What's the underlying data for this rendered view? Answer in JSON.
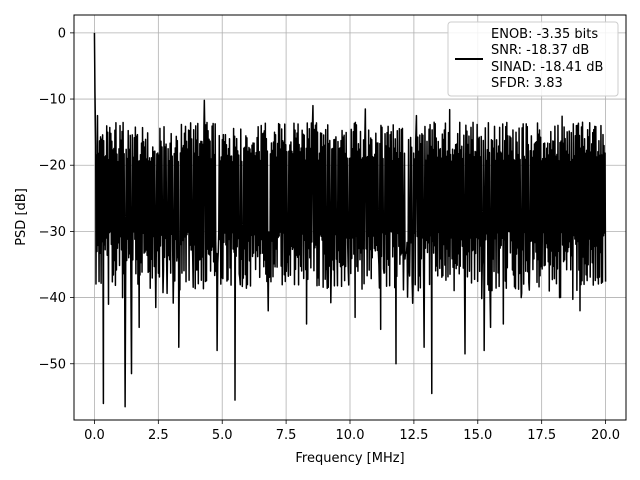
{
  "chart_data": {
    "type": "line",
    "title": "",
    "xlabel": "Frequency [MHz]",
    "ylabel": "PSD [dB]",
    "xlim": [
      -0.8,
      20.8
    ],
    "ylim": [
      -58.5,
      2.7
    ],
    "x_ticks": [
      0.0,
      2.5,
      5.0,
      7.5,
      10.0,
      12.5,
      15.0,
      17.5,
      20.0
    ],
    "x_tick_labels": [
      "0.0",
      "2.5",
      "5.0",
      "7.5",
      "10.0",
      "12.5",
      "15.0",
      "17.5",
      "20.0"
    ],
    "y_ticks": [
      0,
      -10,
      -20,
      -30,
      -40,
      -50
    ],
    "y_tick_labels": [
      "0",
      "−10",
      "−20",
      "−30",
      "−40",
      "−50"
    ],
    "grid": true,
    "legend_position": "top-right",
    "legend_lines": [
      "ENOB: -3.35 bits",
      "SNR: -18.37 dB",
      "SINAD: -18.41 dB",
      "SFDR: 3.83"
    ],
    "series": [
      {
        "color": "#000000",
        "x_range": [
          0,
          20
        ],
        "num_points": 1000,
        "typical_range_db": [
          -16,
          -33
        ],
        "peaks": [
          {
            "x": 0.0,
            "y": 0.0
          },
          {
            "x": 0.05,
            "y": -8.0
          },
          {
            "x": 0.12,
            "y": -12.5
          },
          {
            "x": 4.3,
            "y": -10.2
          },
          {
            "x": 8.55,
            "y": -11.0
          },
          {
            "x": 10.6,
            "y": -11.5
          },
          {
            "x": 13.9,
            "y": -11.6
          },
          {
            "x": 12.6,
            "y": -12.5
          },
          {
            "x": 18.3,
            "y": -12.6
          }
        ],
        "dips": [
          {
            "x": 0.35,
            "y": -56.0
          },
          {
            "x": 1.2,
            "y": -56.5
          },
          {
            "x": 1.45,
            "y": -51.5
          },
          {
            "x": 0.55,
            "y": -41.0
          },
          {
            "x": 1.1,
            "y": -40.0
          },
          {
            "x": 1.75,
            "y": -44.5
          },
          {
            "x": 2.4,
            "y": -41.5
          },
          {
            "x": 3.3,
            "y": -47.5
          },
          {
            "x": 4.8,
            "y": -48.0
          },
          {
            "x": 5.5,
            "y": -55.5
          },
          {
            "x": 6.8,
            "y": -42.0
          },
          {
            "x": 8.3,
            "y": -44.0
          },
          {
            "x": 10.2,
            "y": -43.0
          },
          {
            "x": 11.2,
            "y": -44.8
          },
          {
            "x": 11.8,
            "y": -50.0
          },
          {
            "x": 12.9,
            "y": -47.5
          },
          {
            "x": 13.2,
            "y": -54.5
          },
          {
            "x": 14.5,
            "y": -48.5
          },
          {
            "x": 15.25,
            "y": -48.0
          },
          {
            "x": 15.5,
            "y": -44.5
          },
          {
            "x": 16.0,
            "y": -44.0
          },
          {
            "x": 16.7,
            "y": -40.0
          },
          {
            "x": 18.2,
            "y": -40.0
          },
          {
            "x": 19.0,
            "y": -42.0
          }
        ]
      }
    ]
  }
}
